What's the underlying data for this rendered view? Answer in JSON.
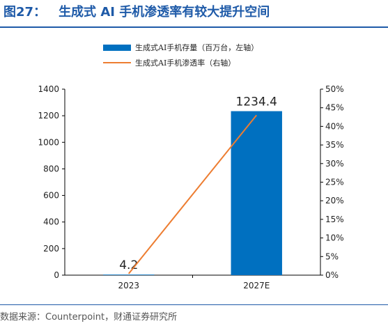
{
  "figure": {
    "label": "图27：",
    "title": "生成式 AI 手机渗透率有较大提升空间",
    "source": "数据来源：Counterpoint，财通证券研究所"
  },
  "colors": {
    "bar": "#0070c0",
    "line": "#ed7d31",
    "title": "#1e5aa8",
    "axis": "#000000"
  },
  "chart_data": {
    "type": "bar+line",
    "categories": [
      "2023",
      "2027E"
    ],
    "series": [
      {
        "name": "生成式AI手机存量（百万台，左轴）",
        "type": "bar",
        "axis": "left",
        "values": [
          4.2,
          1234.4
        ],
        "data_labels": [
          "4.2",
          "1234.4"
        ]
      },
      {
        "name": "生成式AI手机渗透率（右轴）",
        "type": "line",
        "axis": "right",
        "values": [
          0.004,
          0.43
        ]
      }
    ],
    "y_left": {
      "min": 0,
      "max": 1400,
      "ticks": [
        "0",
        "200",
        "400",
        "600",
        "800",
        "1000",
        "1200",
        "1400"
      ]
    },
    "y_right": {
      "min": 0,
      "max": 0.5,
      "ticks": [
        "0%",
        "5%",
        "10%",
        "15%",
        "20%",
        "25%",
        "30%",
        "35%",
        "40%",
        "45%",
        "50%"
      ]
    },
    "legend_position": "top-center",
    "grid": false
  }
}
